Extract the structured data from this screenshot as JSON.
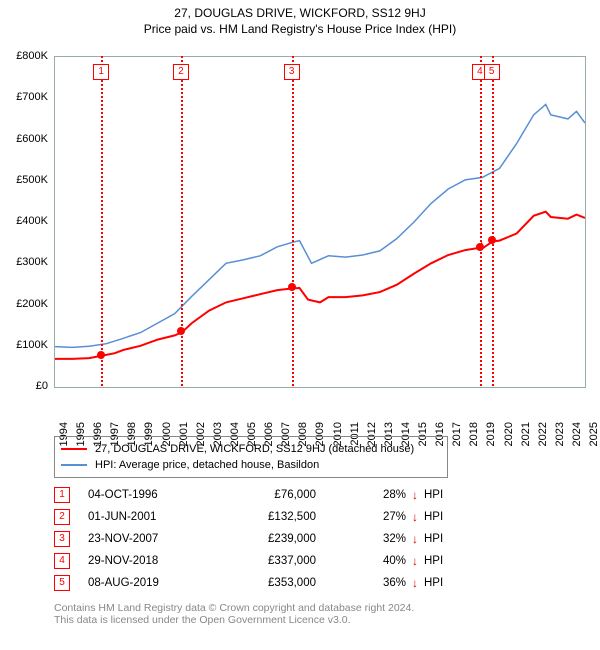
{
  "title": "27, DOUGLAS DRIVE, WICKFORD, SS12 9HJ",
  "subtitle": "Price paid vs. HM Land Registry's House Price Index (HPI)",
  "chart": {
    "type": "line",
    "background": "#ffffff",
    "grid_color": "#d6d6e0",
    "border_color": "#9aa",
    "x": {
      "min": 1994,
      "max": 2025,
      "ticks": [
        1994,
        1995,
        1996,
        1997,
        1998,
        1999,
        2000,
        2001,
        2002,
        2003,
        2004,
        2005,
        2006,
        2007,
        2008,
        2009,
        2010,
        2011,
        2012,
        2013,
        2014,
        2015,
        2016,
        2017,
        2018,
        2019,
        2020,
        2021,
        2022,
        2023,
        2024,
        2025
      ]
    },
    "y": {
      "min": 0,
      "max": 800000,
      "tick_step": 100000,
      "prefix": "£",
      "suffix": "K",
      "ticks": [
        0,
        100000,
        200000,
        300000,
        400000,
        500000,
        600000,
        700000,
        800000
      ]
    },
    "series": [
      {
        "name": "subject",
        "legend": "27, DOUGLAS DRIVE, WICKFORD, SS12 9HJ (detached house)",
        "color": "#ff0000",
        "width": 2,
        "points": [
          [
            1994.0,
            68000
          ],
          [
            1995.0,
            68000
          ],
          [
            1996.0,
            70000
          ],
          [
            1996.76,
            76000
          ],
          [
            1997.5,
            82000
          ],
          [
            1998.0,
            90000
          ],
          [
            1999.0,
            100000
          ],
          [
            2000.0,
            115000
          ],
          [
            2001.0,
            125000
          ],
          [
            2001.42,
            132500
          ],
          [
            2002.0,
            155000
          ],
          [
            2003.0,
            185000
          ],
          [
            2004.0,
            205000
          ],
          [
            2005.0,
            215000
          ],
          [
            2006.0,
            225000
          ],
          [
            2007.0,
            235000
          ],
          [
            2007.9,
            239000
          ],
          [
            2008.3,
            240000
          ],
          [
            2008.8,
            212000
          ],
          [
            2009.5,
            205000
          ],
          [
            2010.0,
            218000
          ],
          [
            2011.0,
            218000
          ],
          [
            2012.0,
            222000
          ],
          [
            2013.0,
            230000
          ],
          [
            2014.0,
            248000
          ],
          [
            2015.0,
            275000
          ],
          [
            2016.0,
            300000
          ],
          [
            2017.0,
            320000
          ],
          [
            2018.0,
            332000
          ],
          [
            2018.9,
            338000
          ],
          [
            2018.95,
            345000
          ],
          [
            2019.0,
            336000
          ],
          [
            2019.6,
            353000
          ],
          [
            2020.0,
            355000
          ],
          [
            2021.0,
            372000
          ],
          [
            2022.0,
            415000
          ],
          [
            2022.7,
            425000
          ],
          [
            2023.0,
            412000
          ],
          [
            2024.0,
            408000
          ],
          [
            2024.5,
            418000
          ],
          [
            2025.0,
            410000
          ]
        ]
      },
      {
        "name": "hpi",
        "legend": "HPI: Average price, detached house, Basildon",
        "color": "#5a8ed6",
        "width": 1.5,
        "points": [
          [
            1994.0,
            98000
          ],
          [
            1995.0,
            96000
          ],
          [
            1996.0,
            99000
          ],
          [
            1997.0,
            105000
          ],
          [
            1998.0,
            118000
          ],
          [
            1999.0,
            132000
          ],
          [
            2000.0,
            155000
          ],
          [
            2001.0,
            178000
          ],
          [
            2002.0,
            220000
          ],
          [
            2003.0,
            260000
          ],
          [
            2004.0,
            300000
          ],
          [
            2005.0,
            308000
          ],
          [
            2006.0,
            318000
          ],
          [
            2007.0,
            340000
          ],
          [
            2008.0,
            352000
          ],
          [
            2008.3,
            355000
          ],
          [
            2009.0,
            300000
          ],
          [
            2010.0,
            318000
          ],
          [
            2011.0,
            315000
          ],
          [
            2012.0,
            320000
          ],
          [
            2013.0,
            330000
          ],
          [
            2014.0,
            360000
          ],
          [
            2015.0,
            400000
          ],
          [
            2016.0,
            445000
          ],
          [
            2017.0,
            480000
          ],
          [
            2018.0,
            502000
          ],
          [
            2019.0,
            508000
          ],
          [
            2020.0,
            530000
          ],
          [
            2021.0,
            590000
          ],
          [
            2022.0,
            660000
          ],
          [
            2022.7,
            685000
          ],
          [
            2023.0,
            660000
          ],
          [
            2024.0,
            650000
          ],
          [
            2024.5,
            668000
          ],
          [
            2025.0,
            640000
          ]
        ]
      }
    ],
    "markers": [
      {
        "n": 1,
        "x": 1996.76,
        "y": 76000
      },
      {
        "n": 2,
        "x": 2001.42,
        "y": 132500
      },
      {
        "n": 3,
        "x": 2007.9,
        "y": 239000
      },
      {
        "n": 4,
        "x": 2018.91,
        "y": 337000
      },
      {
        "n": 5,
        "x": 2019.6,
        "y": 353000
      }
    ]
  },
  "legend": {
    "rows": [
      {
        "label": "27, DOUGLAS DRIVE, WICKFORD, SS12 9HJ (detached house)",
        "color": "#ff0000"
      },
      {
        "label": "HPI: Average price, detached house, Basildon",
        "color": "#5a8ed6"
      }
    ]
  },
  "table": {
    "rows": [
      {
        "n": "1",
        "date": "04-OCT-1996",
        "price": "£76,000",
        "pct": "28%",
        "arrow": "↓",
        "suffix": "HPI"
      },
      {
        "n": "2",
        "date": "01-JUN-2001",
        "price": "£132,500",
        "pct": "27%",
        "arrow": "↓",
        "suffix": "HPI"
      },
      {
        "n": "3",
        "date": "23-NOV-2007",
        "price": "£239,000",
        "pct": "32%",
        "arrow": "↓",
        "suffix": "HPI"
      },
      {
        "n": "4",
        "date": "29-NOV-2018",
        "price": "£337,000",
        "pct": "40%",
        "arrow": "↓",
        "suffix": "HPI"
      },
      {
        "n": "5",
        "date": "08-AUG-2019",
        "price": "£353,000",
        "pct": "36%",
        "arrow": "↓",
        "suffix": "HPI"
      }
    ]
  },
  "footer": {
    "line1": "Contains HM Land Registry data © Crown copyright and database right 2024.",
    "line2": "This data is licensed under the Open Government Licence v3.0."
  }
}
